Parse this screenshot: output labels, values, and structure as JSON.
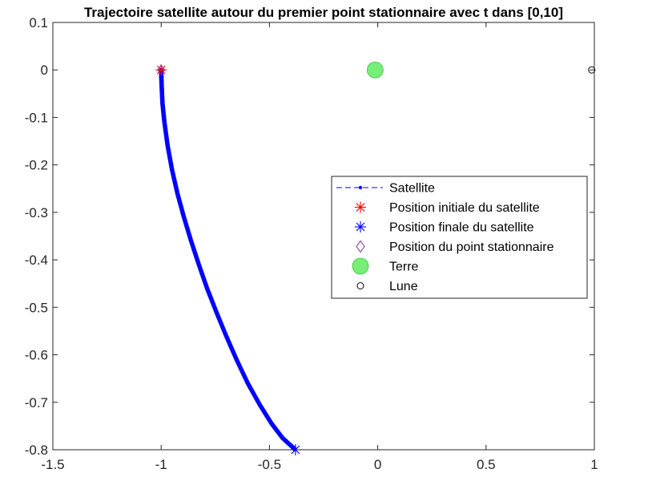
{
  "chart_data": {
    "type": "scatter",
    "title": "Trajectoire satellite autour du premier point stationnaire avec t dans [0,10]",
    "xlabel": "",
    "ylabel": "",
    "xlim": [
      -1.5,
      1
    ],
    "ylim": [
      -0.8,
      0.1
    ],
    "xticks": [
      -1.5,
      -1,
      -0.5,
      0,
      0.5,
      1
    ],
    "yticks": [
      0.1,
      0,
      -0.1,
      -0.2,
      -0.3,
      -0.4,
      -0.5,
      -0.6,
      -0.7,
      -0.8
    ],
    "xtick_labels": [
      "-1.5",
      "-1",
      "-0.5",
      "0",
      "0.5",
      "1"
    ],
    "ytick_labels": [
      "0.1",
      "0",
      "-0.1",
      "-0.2",
      "-0.3",
      "-0.4",
      "-0.5",
      "-0.6",
      "-0.7",
      "-0.8"
    ],
    "grid": false,
    "legend_position": "right",
    "series": [
      {
        "name": "Satellite",
        "style": "dashed line with dot markers",
        "color": "#0000ff",
        "x": [
          -1.0,
          -0.998,
          -0.994,
          -0.985,
          -0.97,
          -0.95,
          -0.925,
          -0.895,
          -0.862,
          -0.826,
          -0.788,
          -0.745,
          -0.7,
          -0.652,
          -0.6,
          -0.545,
          -0.49,
          -0.44,
          -0.38
        ],
        "y": [
          0.0,
          -0.03,
          -0.07,
          -0.11,
          -0.16,
          -0.21,
          -0.26,
          -0.31,
          -0.36,
          -0.41,
          -0.46,
          -0.51,
          -0.56,
          -0.61,
          -0.66,
          -0.705,
          -0.745,
          -0.775,
          -0.8
        ]
      },
      {
        "name": "Position initiale du satellite",
        "marker": "asterisk",
        "color": "#ff0000",
        "x": [
          -1.0
        ],
        "y": [
          0.0
        ]
      },
      {
        "name": "Position finale du satellite",
        "marker": "asterisk",
        "color": "#0000ff",
        "x": [
          -0.38
        ],
        "y": [
          -0.8
        ]
      },
      {
        "name": "Position du point stationnaire",
        "marker": "diamond",
        "color": "#7e2f8e",
        "x": [
          -1.0
        ],
        "y": [
          0.0
        ]
      },
      {
        "name": "Terre",
        "marker": "filled-circle",
        "color": "#77ee77",
        "x": [
          -0.012
        ],
        "y": [
          0.0
        ]
      },
      {
        "name": "Lune",
        "marker": "circle",
        "color": "#000000",
        "x": [
          0.988
        ],
        "y": [
          0.0
        ]
      }
    ]
  }
}
